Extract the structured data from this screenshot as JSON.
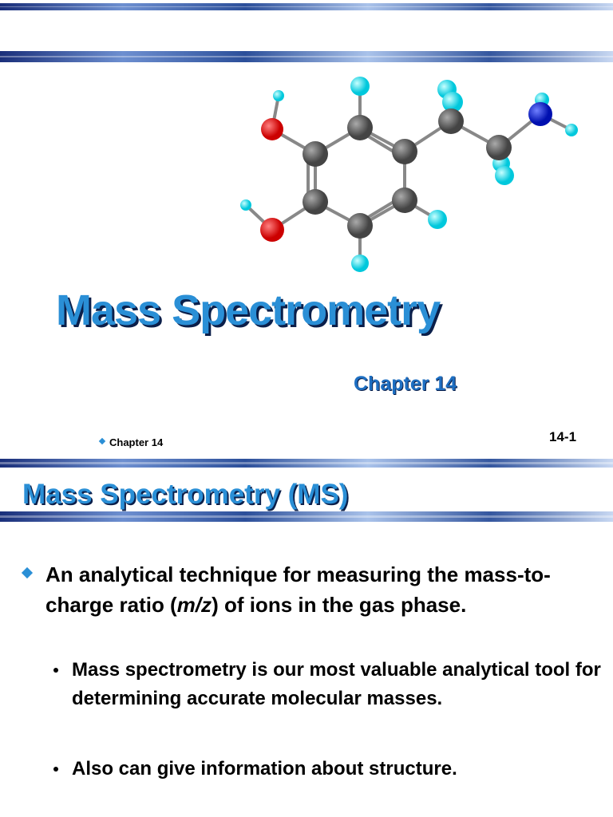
{
  "slide1": {
    "title": "Mass Spectrometry",
    "subtitle": "Chapter 14",
    "footer": "Chapter 14",
    "page_number": "14-1"
  },
  "slide2": {
    "title": "Mass Spectrometry (MS)",
    "bullet": {
      "before": "An analytical technique for measuring the mass-to-charge ratio (",
      "italic": "m/z",
      "after": ") of ions in the gas phase."
    },
    "sub_bullets": [
      "Mass spectrometry is our most valuable analytical tool for determining accurate molecular masses.",
      "Also can give information about structure."
    ]
  }
}
